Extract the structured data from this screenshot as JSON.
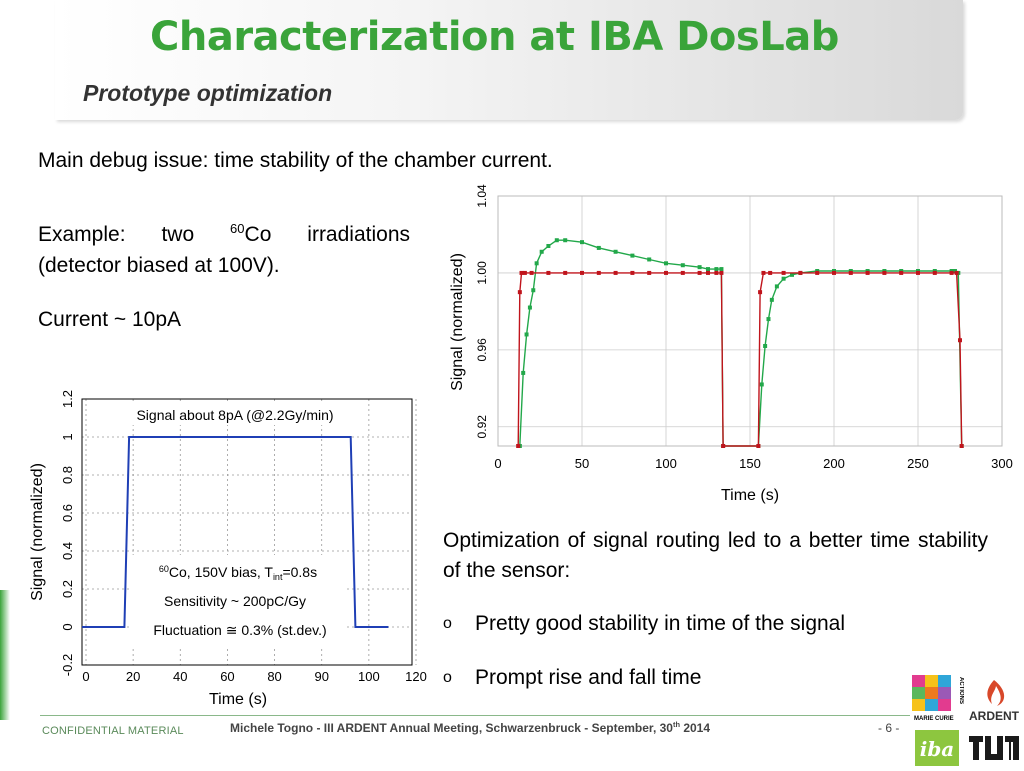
{
  "header": {
    "title": "Characterization at IBA DosLab",
    "subtitle": "Prototype optimization"
  },
  "body": {
    "line1": "Main debug issue: time stability of the chamber current.",
    "example_pre": "Example:  two ",
    "example_sup": "60",
    "example_post": "Co  irradiations",
    "example_line2": "(detector biased at 100V).",
    "current": "Current ~ 10pA",
    "optimization": "Optimization of signal routing led to a better time stability of the sensor:",
    "bullet_marker": "o",
    "bullets": [
      "Pretty good stability in time of the signal",
      "Prompt rise and fall time"
    ]
  },
  "chart_data": [
    {
      "type": "line",
      "title": "Signal about 8pA (@2.2Gy/min)",
      "xlabel": "Time (s)",
      "ylabel": "Signal (normalized)",
      "ylim": [
        -0.2,
        1.2
      ],
      "xtick_labels": [
        "0",
        "20",
        "40",
        "60",
        "80",
        "90",
        "100",
        "120"
      ],
      "ytick_labels": [
        "-0.2",
        "0",
        "0.2",
        "0.4",
        "0.6",
        "0.8",
        "1",
        "1.2"
      ],
      "annotation_sup": "60",
      "annotation_line1_a": "Co, 150V bias, T",
      "annotation_sub": "int",
      "annotation_line1_b": "=0.8s",
      "annotation_line2": "Sensitivity ~ 200pC/Gy",
      "annotation_line3": "Fluctuation ≅ 0.3% (st.dev.)",
      "grid": true,
      "color": "#1f3fb5",
      "series": [
        {
          "x": [
            -10,
            8,
            10,
            12,
            20,
            40,
            60,
            80,
            90,
            100,
            104,
            106,
            108,
            120
          ],
          "values": [
            0,
            0,
            1.0,
            1.0,
            1.0,
            1.0,
            1.0,
            1.0,
            1.0,
            1.0,
            1.0,
            0,
            0,
            0
          ]
        }
      ]
    },
    {
      "type": "scatter",
      "xlabel": "Time (s)",
      "ylabel": "Signal (normalized)",
      "xlim": [
        0,
        300
      ],
      "ylim": [
        0.91,
        1.04
      ],
      "xtick_labels": [
        "0",
        "50",
        "100",
        "150",
        "200",
        "250",
        "300"
      ],
      "ytick_labels": [
        "0.92",
        "0.96",
        "1.00",
        "1.04"
      ],
      "grid": true,
      "series": [
        {
          "color": "#22a84a",
          "x": [
            13,
            15,
            17,
            19,
            21,
            23,
            26,
            30,
            35,
            40,
            50,
            60,
            70,
            80,
            90,
            100,
            110,
            120,
            125,
            130,
            133,
            134,
            155,
            157,
            159,
            161,
            163,
            166,
            170,
            175,
            180,
            190,
            200,
            210,
            220,
            230,
            240,
            250,
            260,
            270,
            272,
            274,
            276
          ],
          "values": [
            0.905,
            0.948,
            0.968,
            0.982,
            0.991,
            1.005,
            1.011,
            1.014,
            1.017,
            1.017,
            1.016,
            1.013,
            1.011,
            1.009,
            1.007,
            1.005,
            1.004,
            1.003,
            1.002,
            1.002,
            1.002,
            0.905,
            0.905,
            0.942,
            0.962,
            0.976,
            0.986,
            0.993,
            0.997,
            0.999,
            1.0,
            1.001,
            1.001,
            1.001,
            1.001,
            1.001,
            1.001,
            1.001,
            1.001,
            1.001,
            1.001,
            1.0,
            0.905
          ]
        },
        {
          "color": "#c0141c",
          "x": [
            12,
            13,
            14,
            16,
            20,
            30,
            40,
            50,
            60,
            70,
            80,
            90,
            100,
            110,
            120,
            125,
            130,
            133,
            134,
            155,
            156,
            158,
            162,
            170,
            180,
            190,
            200,
            210,
            220,
            230,
            240,
            250,
            260,
            270,
            273,
            275,
            276
          ],
          "values": [
            0.91,
            0.99,
            1.0,
            1.0,
            1.0,
            1.0,
            1.0,
            1.0,
            1.0,
            1.0,
            1.0,
            1.0,
            1.0,
            1.0,
            1.0,
            1.0,
            1.0,
            1.0,
            0.905,
            0.905,
            0.99,
            1.0,
            1.0,
            1.0,
            1.0,
            1.0,
            1.0,
            1.0,
            1.0,
            1.0,
            1.0,
            1.0,
            1.0,
            1.0,
            1.0,
            0.965,
            0.905
          ]
        }
      ]
    }
  ],
  "footer": {
    "left": "CONFIDENTIAL MATERIAL",
    "center_a": "Michele Togno - III ARDENT Annual Meeting, Schwarzenbruck - September, 30",
    "center_sup": "th",
    "center_b": " 2014",
    "page": "- 6 -"
  },
  "logos": {
    "marie_curie_text": "MARIE CURIE",
    "actions_text": "ACTIONS",
    "ardent_text": "ARDENT",
    "iba_text": "iba",
    "tum_text": "TUM"
  }
}
